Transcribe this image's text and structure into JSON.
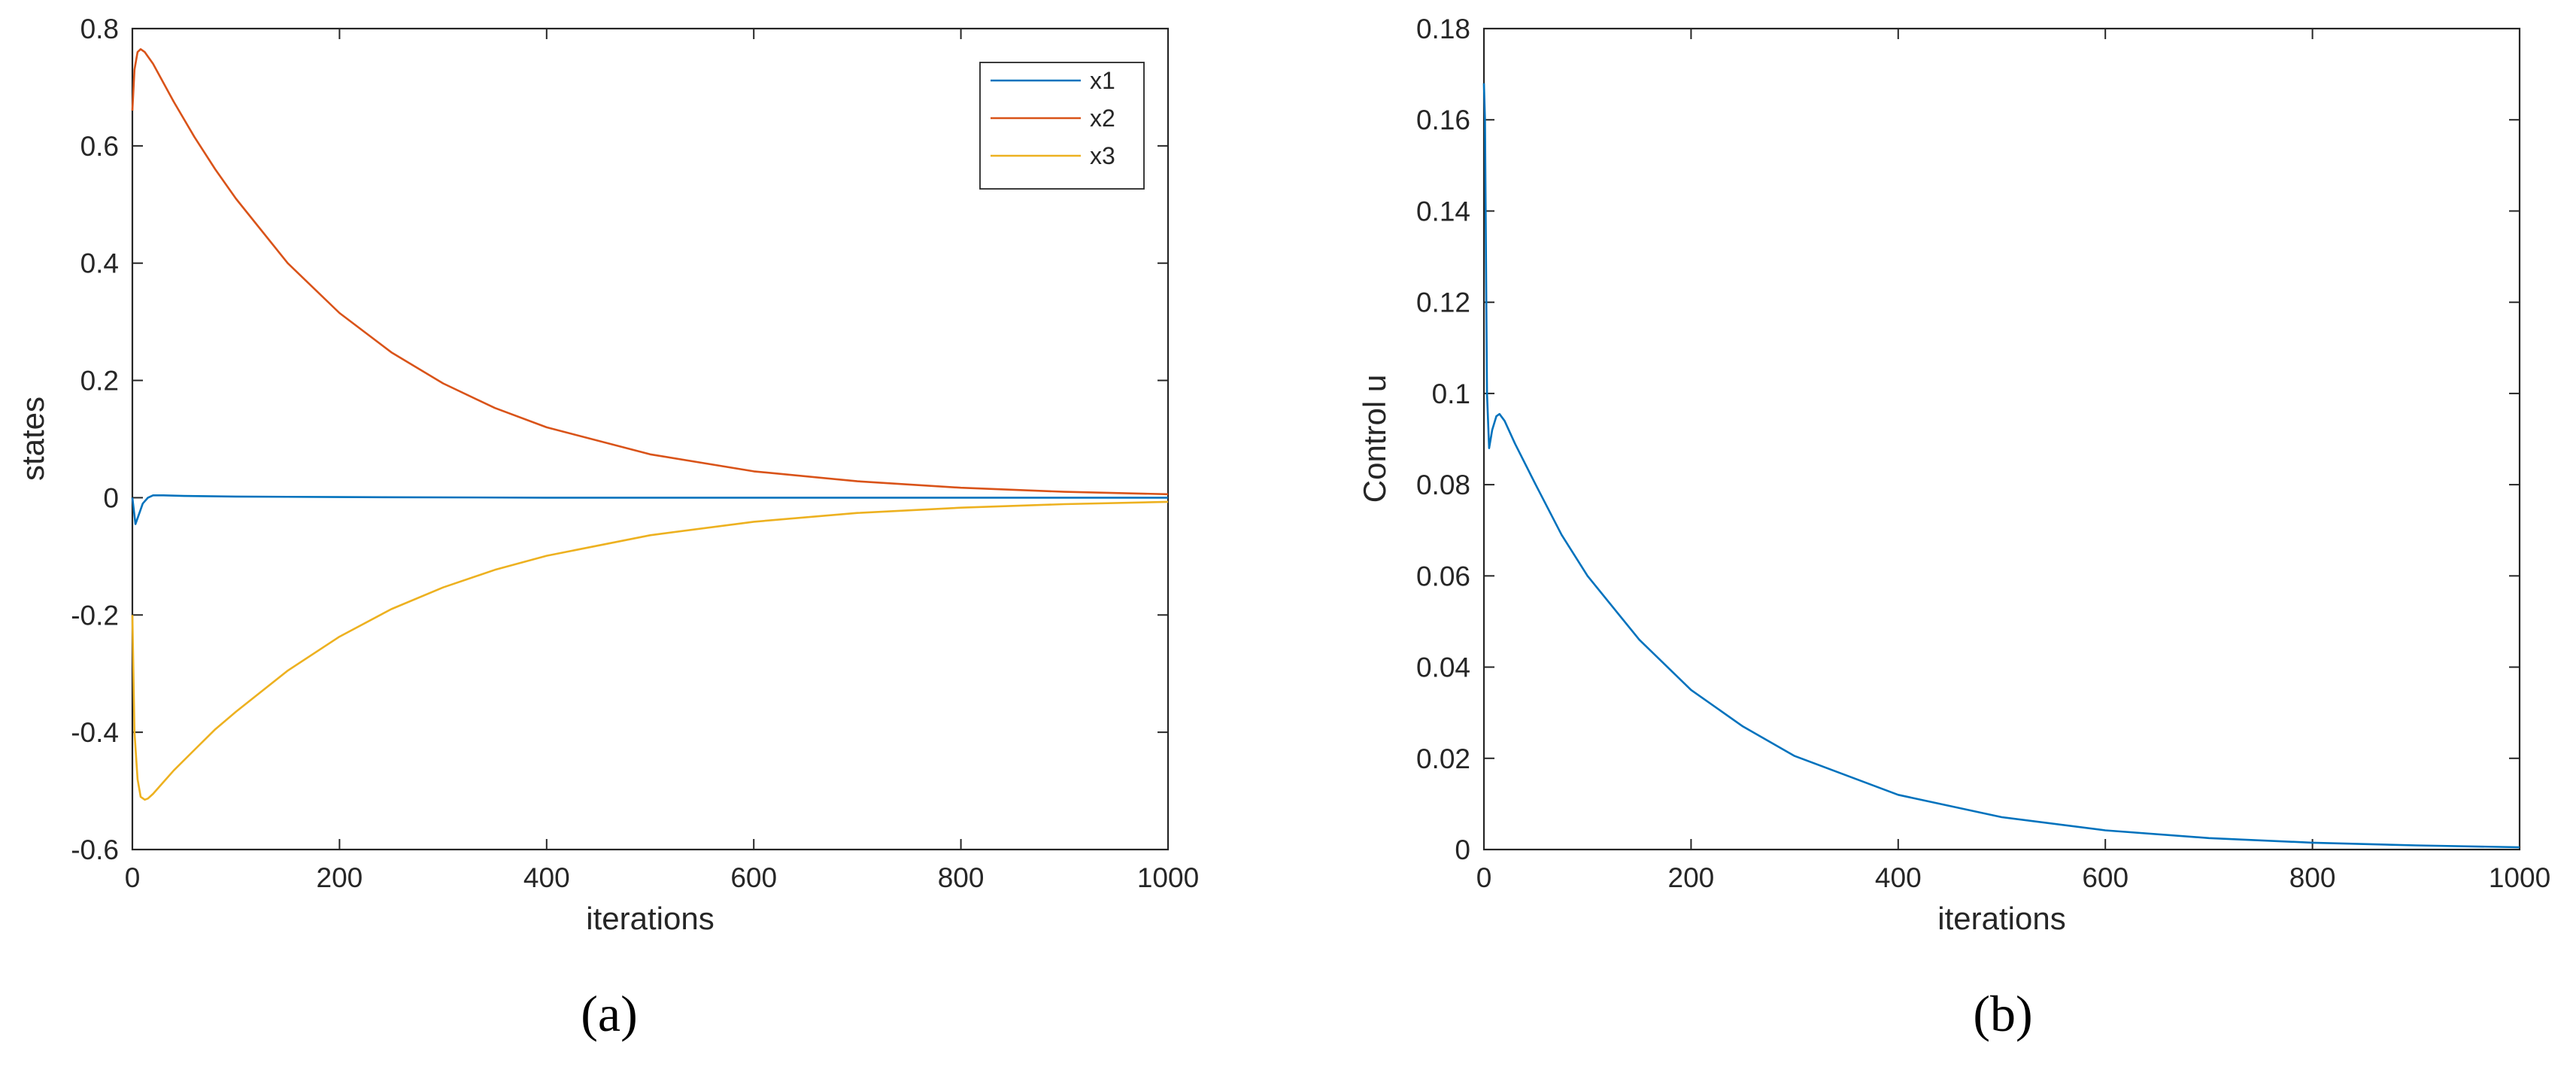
{
  "chart_data": [
    {
      "type": "line",
      "caption": "(a)",
      "xlabel": "iterations",
      "ylabel": "states",
      "xlim": [
        0,
        1000
      ],
      "ylim": [
        -0.6,
        0.8
      ],
      "xticks": [
        0,
        200,
        400,
        600,
        800,
        1000
      ],
      "xtick_labels": [
        "0",
        "200",
        "400",
        "600",
        "800",
        "1000"
      ],
      "yticks": [
        -0.6,
        -0.4,
        -0.2,
        0,
        0.2,
        0.4,
        0.6,
        0.8
      ],
      "ytick_labels": [
        "-0.6",
        "-0.4",
        "-0.2",
        "0",
        "0.2",
        "0.4",
        "0.6",
        "0.8"
      ],
      "grid": false,
      "legend": "top-right",
      "series": [
        {
          "name": "x1",
          "color": "#0072BD",
          "x": [
            0,
            3,
            6,
            10,
            15,
            20,
            30,
            50,
            100,
            200,
            400,
            600,
            800,
            1000
          ],
          "y": [
            0.0,
            -0.045,
            -0.03,
            -0.01,
            0.0,
            0.004,
            0.004,
            0.003,
            0.002,
            0.001,
            0.0,
            0.0,
            0.0,
            0.0
          ]
        },
        {
          "name": "x2",
          "color": "#D95319",
          "x": [
            0,
            2,
            5,
            8,
            12,
            20,
            40,
            60,
            80,
            100,
            150,
            200,
            250,
            300,
            350,
            400,
            500,
            600,
            700,
            800,
            900,
            1000
          ],
          "y": [
            0.66,
            0.73,
            0.76,
            0.765,
            0.76,
            0.74,
            0.675,
            0.615,
            0.56,
            0.51,
            0.4,
            0.315,
            0.248,
            0.195,
            0.153,
            0.12,
            0.074,
            0.045,
            0.028,
            0.017,
            0.01,
            0.006
          ]
        },
        {
          "name": "x3",
          "color": "#EDB120",
          "x": [
            0,
            2,
            5,
            8,
            12,
            15,
            20,
            30,
            40,
            60,
            80,
            100,
            150,
            200,
            250,
            300,
            350,
            400,
            500,
            600,
            700,
            800,
            900,
            1000
          ],
          "y": [
            -0.2,
            -0.4,
            -0.48,
            -0.51,
            -0.515,
            -0.513,
            -0.505,
            -0.485,
            -0.465,
            -0.43,
            -0.395,
            -0.365,
            -0.295,
            -0.237,
            -0.19,
            -0.153,
            -0.123,
            -0.099,
            -0.064,
            -0.041,
            -0.026,
            -0.017,
            -0.011,
            -0.007
          ]
        }
      ]
    },
    {
      "type": "line",
      "caption": "(b)",
      "xlabel": "iterations",
      "ylabel": "Control u",
      "xlim": [
        0,
        1000
      ],
      "ylim": [
        0,
        0.18
      ],
      "xticks": [
        0,
        200,
        400,
        600,
        800,
        1000
      ],
      "xtick_labels": [
        "0",
        "200",
        "400",
        "600",
        "800",
        "1000"
      ],
      "yticks": [
        0,
        0.02,
        0.04,
        0.06,
        0.08,
        0.1,
        0.12,
        0.14,
        0.16,
        0.18
      ],
      "ytick_labels": [
        "0",
        "0.02",
        "0.04",
        "0.06",
        "0.08",
        "0.1",
        "0.12",
        "0.14",
        "0.16",
        "0.18"
      ],
      "grid": false,
      "legend": "none",
      "series": [
        {
          "color": "#0072BD",
          "x": [
            0,
            1,
            3,
            5,
            8,
            12,
            15,
            20,
            30,
            50,
            75,
            100,
            150,
            200,
            250,
            300,
            400,
            500,
            600,
            700,
            800,
            900,
            1000
          ],
          "y": [
            0.168,
            0.16,
            0.1,
            0.088,
            0.092,
            0.095,
            0.0955,
            0.094,
            0.089,
            0.08,
            0.069,
            0.06,
            0.046,
            0.035,
            0.027,
            0.0205,
            0.012,
            0.0071,
            0.0042,
            0.0025,
            0.0015,
            0.0009,
            0.0005
          ]
        }
      ]
    }
  ]
}
